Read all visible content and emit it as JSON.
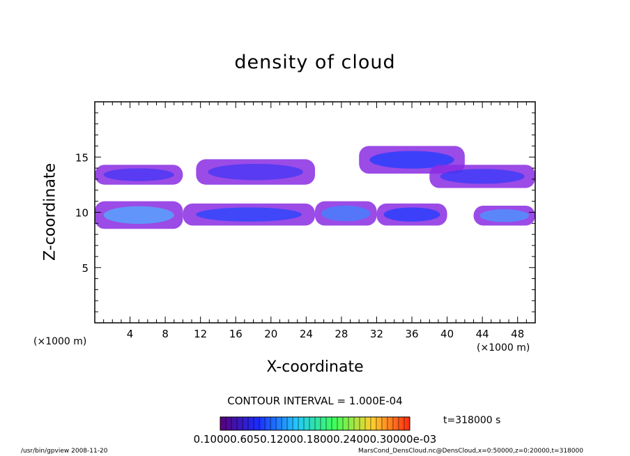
{
  "chart_data": {
    "type": "heatmap",
    "title": "density of cloud",
    "xlabel": "X-coordinate",
    "ylabel": "Z-coordinate",
    "x_unit_label": "(×1000 m)",
    "xlim": [
      0,
      50
    ],
    "ylim": [
      0,
      20
    ],
    "x_ticks": [
      "4",
      "8",
      "12",
      "16",
      "20",
      "24",
      "28",
      "32",
      "36",
      "40",
      "44",
      "48"
    ],
    "y_ticks": [
      "5",
      "10",
      "15"
    ],
    "contour_interval_label": "CONTOUR INTERVAL = 1.000E-04",
    "time_label": "t=318000 s",
    "colorbar_labels_text": "0.10000.6050.12000.18000.24000.30000e-03",
    "colorbar_range": [
      0.0,
      0.0003
    ],
    "cloud_regions": [
      {
        "x": [
          0,
          10
        ],
        "z": [
          8.5,
          11.0
        ],
        "density": 0.00026
      },
      {
        "x": [
          10,
          25
        ],
        "z": [
          8.8,
          10.8
        ],
        "density": 0.00016
      },
      {
        "x": [
          25,
          32
        ],
        "z": [
          8.8,
          11.0
        ],
        "density": 0.00022
      },
      {
        "x": [
          32,
          40
        ],
        "z": [
          8.8,
          10.8
        ],
        "density": 0.00015
      },
      {
        "x": [
          43,
          50
        ],
        "z": [
          8.8,
          10.6
        ],
        "density": 0.00024
      },
      {
        "x": [
          0,
          10
        ],
        "z": [
          12.5,
          14.3
        ],
        "density": 0.0001
      },
      {
        "x": [
          11.5,
          25
        ],
        "z": [
          12.5,
          14.8
        ],
        "density": 0.0001
      },
      {
        "x": [
          30,
          42
        ],
        "z": [
          13.5,
          16.0
        ],
        "density": 0.00015
      },
      {
        "x": [
          38,
          50
        ],
        "z": [
          12.2,
          14.3
        ],
        "density": 0.00012
      }
    ]
  },
  "footer": {
    "program": "/usr/bin/gpview   2008-11-20",
    "source": "MarsCond_DensCloud.nc@DensCloud,x=0:50000,z=0:20000,t=318000"
  },
  "colors": {
    "low": "#8a2be2",
    "mid": "#1e3cff",
    "high": "#5fd8ff"
  }
}
